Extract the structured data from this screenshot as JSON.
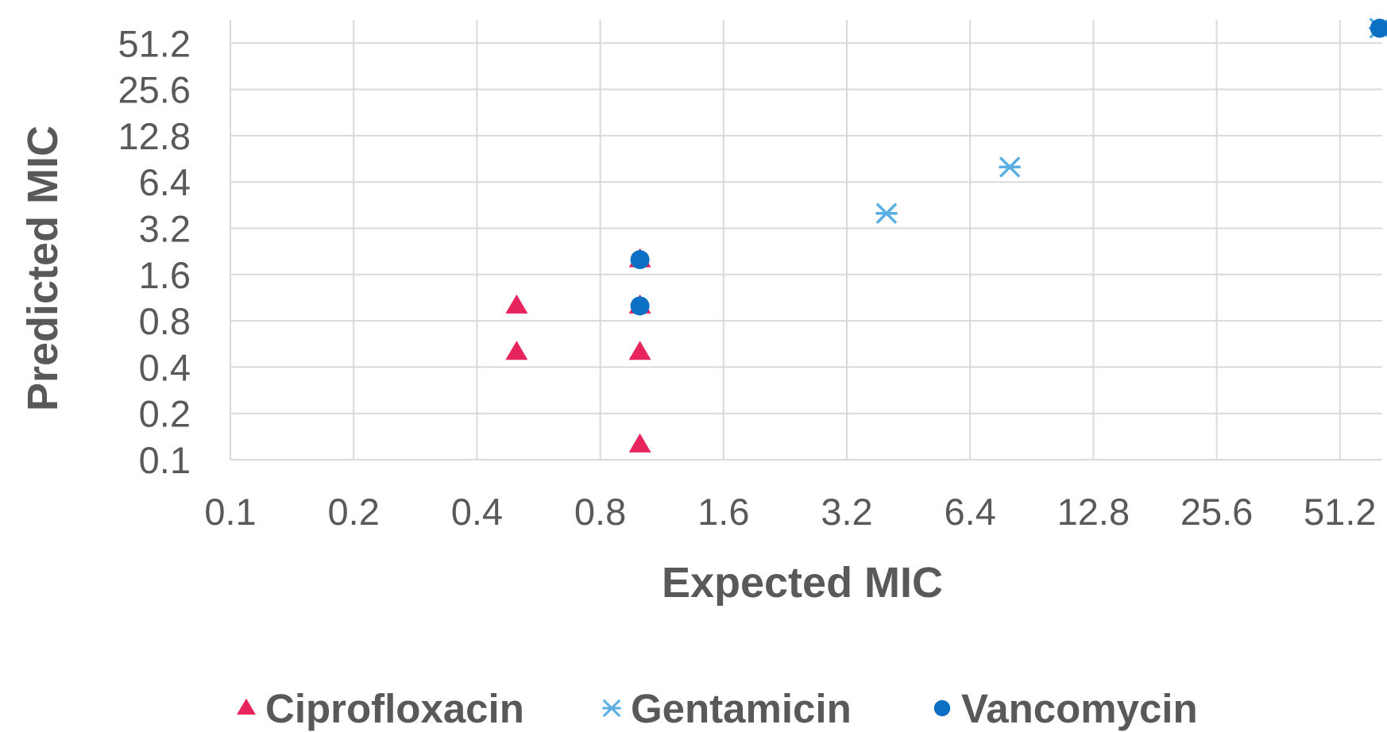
{
  "chart_data": {
    "type": "scatter",
    "xlabel": "Expected MIC",
    "ylabel": "Predicted MIC",
    "x_scale": "log2",
    "y_scale": "log2",
    "xlim": [
      0.1,
      64
    ],
    "ylim": [
      0.1,
      64
    ],
    "x_ticks": [
      "0.1",
      "0.2",
      "0.4",
      "0.8",
      "1.6",
      "3.2",
      "6.4",
      "12.8",
      "25.6",
      "51.2"
    ],
    "y_ticks": [
      "0.1",
      "0.2",
      "0.4",
      "0.8",
      "1.6",
      "3.2",
      "6.4",
      "12.8",
      "25.6",
      "51.2"
    ],
    "grid": true,
    "legend_position": "bottom",
    "series": [
      {
        "name": "Ciprofloxacin",
        "marker": "triangle",
        "color": "#e8245c",
        "points": [
          {
            "x": 0.5,
            "y": 1
          },
          {
            "x": 0.5,
            "y": 0.5
          },
          {
            "x": 1,
            "y": 2
          },
          {
            "x": 1,
            "y": 1
          },
          {
            "x": 1,
            "y": 0.5
          },
          {
            "x": 1,
            "y": 0.125
          }
        ]
      },
      {
        "name": "Gentamicin",
        "marker": "x-star",
        "color": "#5aaee6",
        "points": [
          {
            "x": 4,
            "y": 4
          },
          {
            "x": 8,
            "y": 8
          },
          {
            "x": 64,
            "y": 64
          }
        ]
      },
      {
        "name": "Vancomycin",
        "marker": "circle",
        "color": "#0b6fc4",
        "points": [
          {
            "x": 1,
            "y": 2
          },
          {
            "x": 1,
            "y": 1
          },
          {
            "x": 64,
            "y": 64
          }
        ]
      }
    ]
  }
}
